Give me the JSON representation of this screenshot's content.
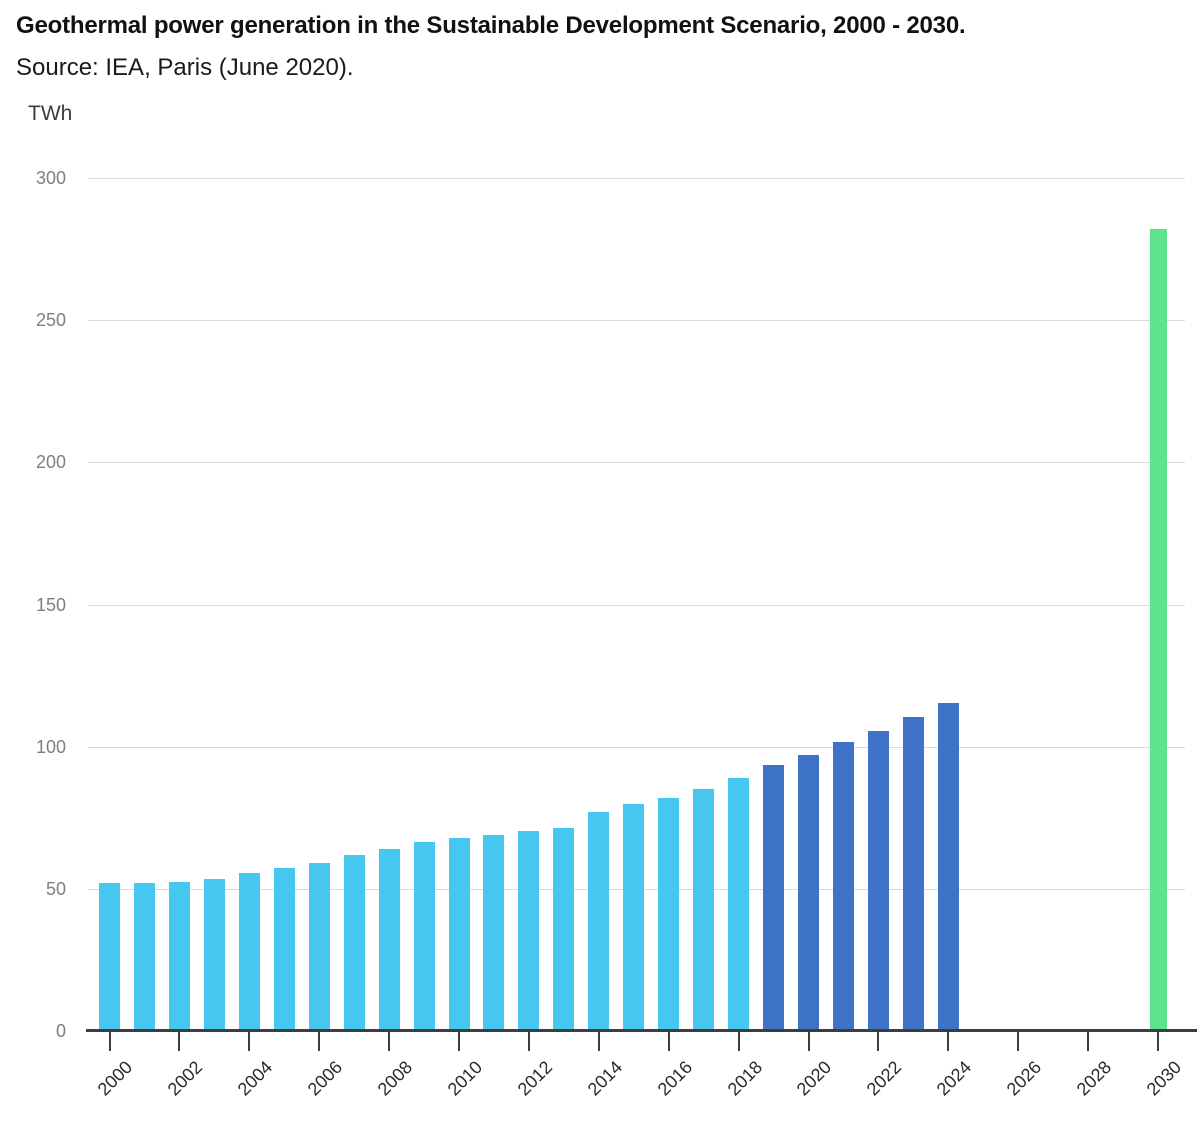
{
  "chart_data": {
    "type": "bar",
    "title": "Geothermal power generation in the Sustainable Development Scenario, 2000 - 2030.",
    "subtitle": "Source: IEA, Paris (June 2020).",
    "ylabel": "TWh",
    "ylim": [
      0,
      300
    ],
    "yticks": [
      0,
      50,
      100,
      150,
      200,
      250,
      300
    ],
    "xticks": [
      2000,
      2002,
      2004,
      2006,
      2008,
      2010,
      2012,
      2014,
      2016,
      2018,
      2020,
      2022,
      2024,
      2026,
      2028,
      2030
    ],
    "grid": "horizontal-light-gray",
    "legend": "none",
    "years": [
      2000,
      2001,
      2002,
      2003,
      2004,
      2005,
      2006,
      2007,
      2008,
      2009,
      2010,
      2011,
      2012,
      2013,
      2014,
      2015,
      2016,
      2017,
      2018,
      2019,
      2020,
      2021,
      2022,
      2023,
      2024,
      2030
    ],
    "values": [
      52,
      52,
      52.5,
      53.5,
      55.5,
      57.5,
      59,
      62,
      64,
      66.5,
      68,
      69,
      70.5,
      71.5,
      77,
      80,
      82,
      85,
      89,
      93.5,
      97,
      101.5,
      105.5,
      110.5,
      115.5,
      282
    ],
    "groups": [
      "historical",
      "historical",
      "historical",
      "historical",
      "historical",
      "historical",
      "historical",
      "historical",
      "historical",
      "historical",
      "historical",
      "historical",
      "historical",
      "historical",
      "historical",
      "historical",
      "historical",
      "historical",
      "historical",
      "projection",
      "projection",
      "projection",
      "projection",
      "projection",
      "projection",
      "target"
    ],
    "colors": {
      "historical": "#45C7F0",
      "projection": "#3F73C8",
      "target": "#5DE38B"
    },
    "axis_color": "#3d3d3d",
    "gridline_color": "#dadada",
    "ytick_label_color": "#7f7f7f",
    "xtick_label_color": "#2b2b2b"
  }
}
